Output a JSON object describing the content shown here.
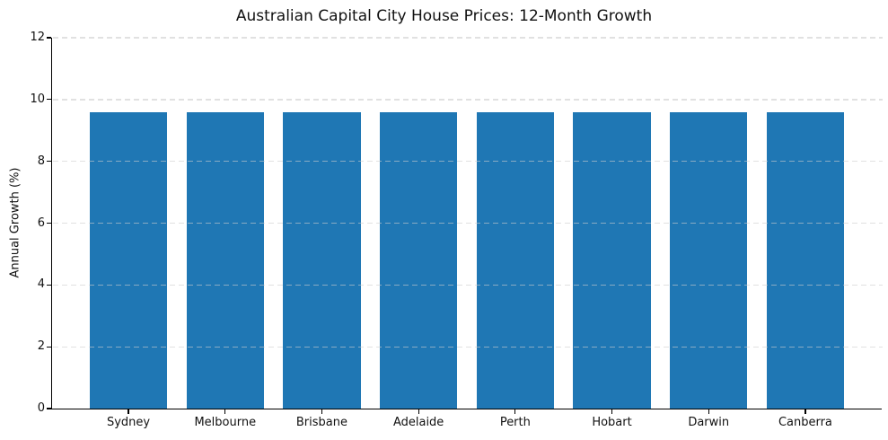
{
  "chart_data": {
    "type": "bar",
    "title": "Australian Capital City House Prices: 12-Month Growth",
    "ylabel": "Annual Growth (%)",
    "xlabel": "",
    "categories": [
      "Sydney",
      "Melbourne",
      "Brisbane",
      "Adelaide",
      "Perth",
      "Hobart",
      "Darwin",
      "Canberra"
    ],
    "values": [
      9.6,
      9.6,
      9.6,
      9.6,
      9.6,
      9.6,
      9.6,
      9.6
    ],
    "ylim": [
      0,
      12
    ],
    "yticks": [
      0,
      2,
      4,
      6,
      8,
      10,
      12
    ],
    "bar_color": "#1f77b4",
    "axis_color": "#000000",
    "grid": "horizontal-dashed",
    "legend": "none",
    "background": "#ffffff"
  }
}
